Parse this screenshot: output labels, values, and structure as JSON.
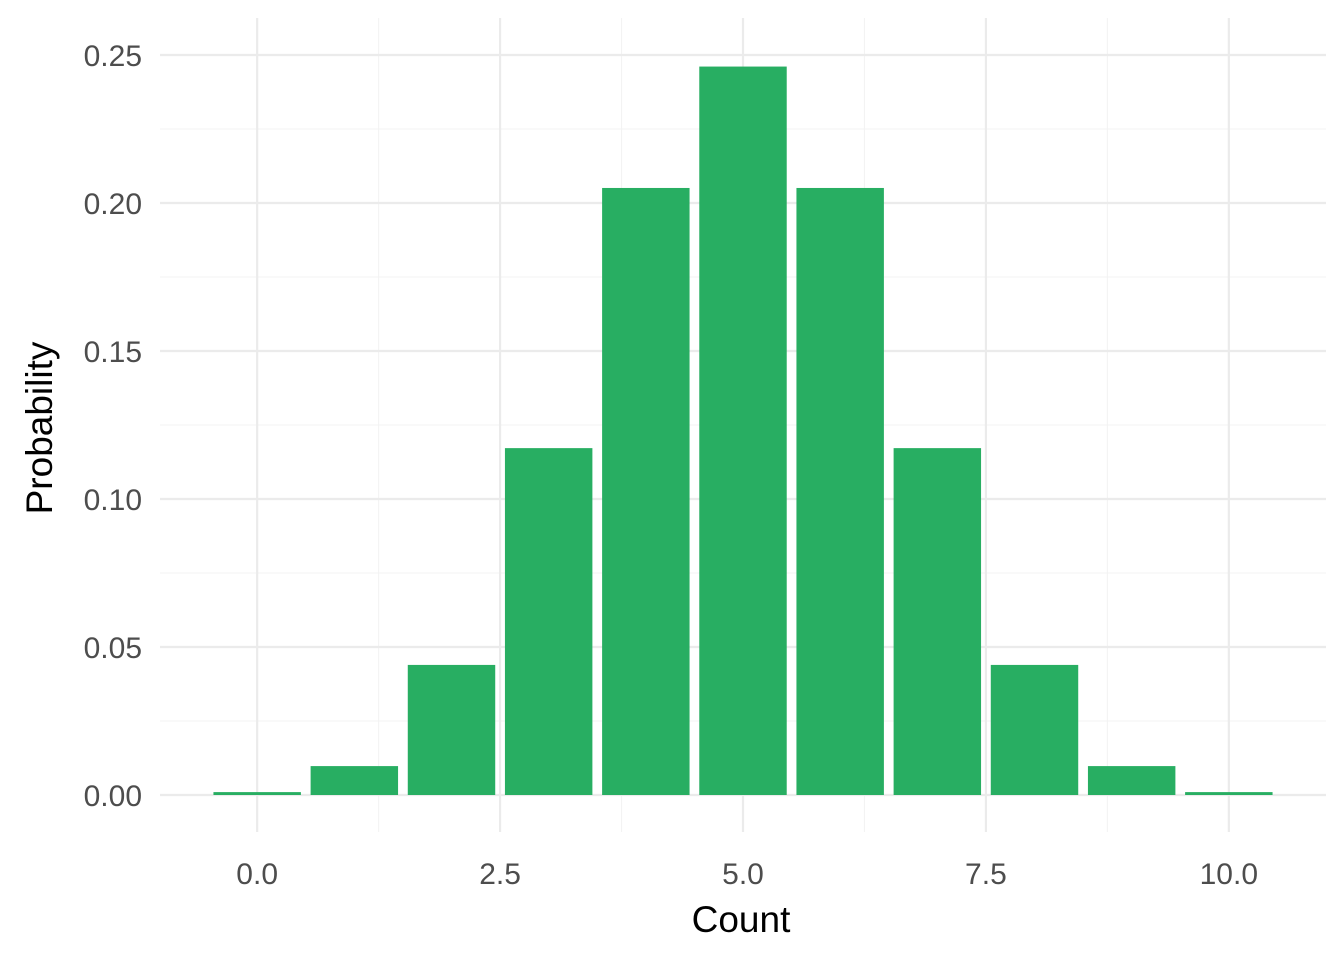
{
  "chart_data": {
    "type": "bar",
    "x": [
      0,
      1,
      2,
      3,
      4,
      5,
      6,
      7,
      8,
      9,
      10
    ],
    "values": [
      0.000977,
      0.009766,
      0.043945,
      0.117188,
      0.205078,
      0.246094,
      0.205078,
      0.117188,
      0.043945,
      0.009766,
      0.000977
    ],
    "xlabel": "Count",
    "ylabel": "Probability",
    "xlim": [
      -0.5,
      10.5
    ],
    "ylim": [
      0,
      0.25
    ],
    "x_ticks": [
      0,
      2.5,
      5,
      7.5,
      10
    ],
    "x_tick_labels": [
      "0.0",
      "2.5",
      "5.0",
      "7.5",
      "10.0"
    ],
    "y_ticks": [
      0,
      0.05,
      0.1,
      0.15,
      0.2,
      0.25
    ],
    "y_tick_labels": [
      "0.00",
      "0.05",
      "0.10",
      "0.15",
      "0.20",
      "0.25"
    ],
    "bar_width": 0.9,
    "grid": true,
    "legend": "none",
    "bar_color": "#28ae62",
    "grid_color": "#ebebeb"
  }
}
